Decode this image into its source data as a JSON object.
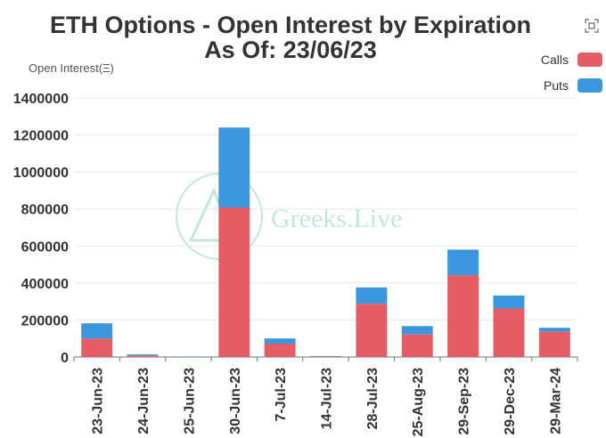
{
  "chart_data": {
    "type": "bar",
    "stacked": true,
    "title_line1": "ETH Options - Open Interest by Expiration",
    "title_line2": "As Of: 23/06/23",
    "ylabel": "Open Interest(Ξ)",
    "xlabel": "",
    "watermark": "Greeks.Live",
    "categories": [
      "23-Jun-23",
      "24-Jun-23",
      "25-Jun-23",
      "30-Jun-23",
      "7-Jul-23",
      "14-Jul-23",
      "28-Jul-23",
      "25-Aug-23",
      "29-Sep-23",
      "29-Dec-23",
      "29-Mar-24"
    ],
    "series": [
      {
        "name": "Calls",
        "color": "#e45c64",
        "values": [
          100000,
          8000,
          2000,
          808000,
          72000,
          3000,
          288000,
          122000,
          442000,
          262000,
          138000
        ]
      },
      {
        "name": "Puts",
        "color": "#3a97dd",
        "values": [
          82000,
          6000,
          1000,
          432000,
          28000,
          2000,
          88000,
          45000,
          138000,
          70000,
          20000
        ]
      }
    ],
    "ylim": [
      0,
      1400000
    ],
    "yticks": [
      0,
      200000,
      400000,
      600000,
      800000,
      1000000,
      1200000,
      1400000
    ],
    "grid": true,
    "legend_position": "top-right"
  },
  "ui": {
    "fullscreen_icon": "fullscreen-icon"
  }
}
